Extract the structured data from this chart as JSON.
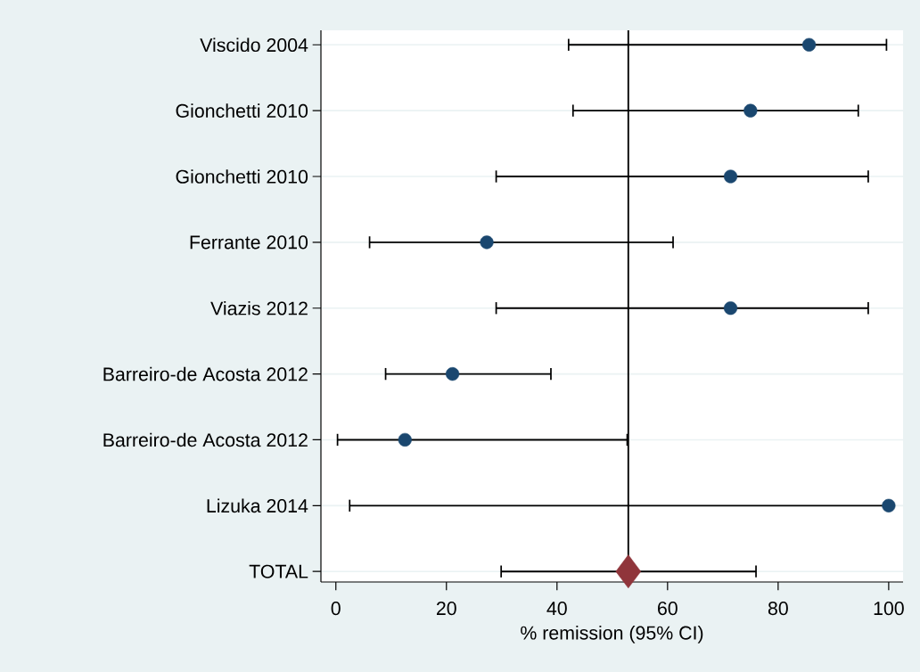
{
  "chart_data": {
    "type": "scatter",
    "orientation": "horizontal",
    "xlabel": "% remission (95% CI)",
    "categories": [
      "Viscido 2004",
      "Gionchetti 2010",
      "Gionchetti 2010",
      "Ferrante 2010",
      "Viazis 2012",
      "Barreiro-de Acosta 2012",
      "Barreiro-de Acosta 2012",
      "Lizuka 2014",
      "TOTAL"
    ],
    "series": [
      {
        "color": "#1a476f",
        "marker": "circle",
        "values": [
          85.6,
          75.0,
          71.4,
          27.3,
          71.4,
          21.1,
          12.5,
          100,
          null
        ],
        "errors": [
          [
            42.1,
            99.6
          ],
          [
            42.9,
            94.5
          ],
          [
            29.0,
            96.3
          ],
          [
            6.1,
            61.0
          ],
          [
            29.0,
            96.3
          ],
          [
            9.0,
            38.9
          ],
          [
            0.3,
            52.7
          ],
          [
            2.5,
            100
          ],
          null
        ]
      },
      {
        "color": "#90353b",
        "marker": "diamond",
        "values": [
          null,
          null,
          null,
          null,
          null,
          null,
          null,
          null,
          52.9
        ],
        "errors": [
          null,
          null,
          null,
          null,
          null,
          null,
          null,
          null,
          [
            29.9,
            76.0
          ]
        ]
      }
    ],
    "xlim": [
      -2.7,
      102.6
    ],
    "xticks": [
      0,
      20,
      40,
      60,
      80,
      100
    ],
    "grid": "y",
    "ref_lines": [
      {
        "axis": "x",
        "value": 52.9
      }
    ]
  }
}
